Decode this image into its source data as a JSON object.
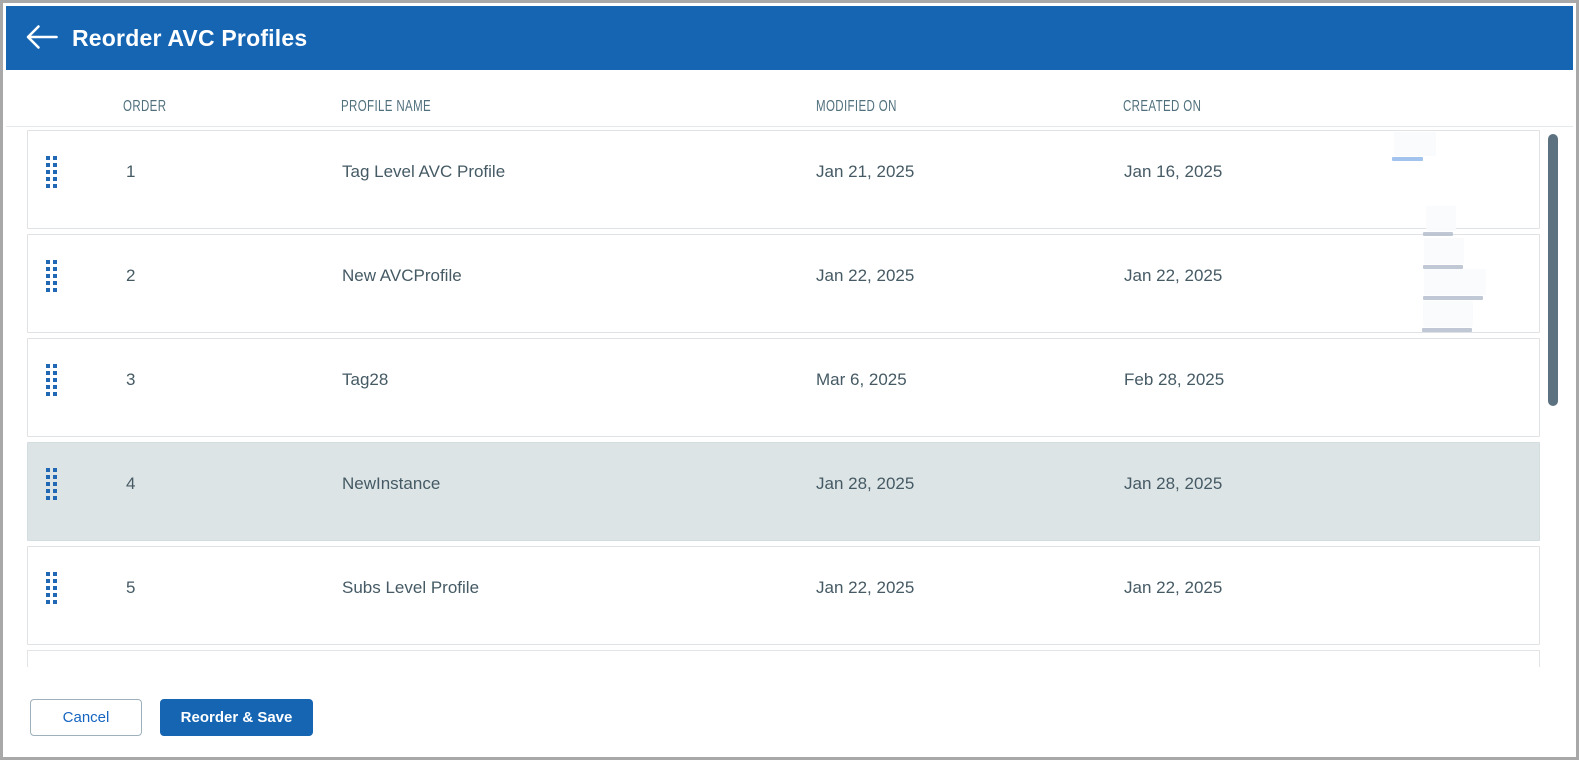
{
  "header": {
    "title": "Reorder AVC Profiles",
    "back_icon": "arrow-left-icon"
  },
  "table": {
    "columns": {
      "order": "ORDER",
      "name": "PROFILE NAME",
      "modified": "MODIFIED ON",
      "created": "CREATED ON"
    },
    "drag_handle_icon": "drag-handle-icon",
    "rows": [
      {
        "order": "1",
        "name": "Tag Level AVC Profile",
        "modified": "Jan 21, 2025",
        "created": "Jan 16, 2025",
        "highlighted": false
      },
      {
        "order": "2",
        "name": "New AVCProfile",
        "modified": "Jan 22, 2025",
        "created": "Jan 22, 2025",
        "highlighted": false
      },
      {
        "order": "3",
        "name": "Tag28",
        "modified": "Mar 6, 2025",
        "created": "Feb 28, 2025",
        "highlighted": false
      },
      {
        "order": "4",
        "name": "NewInstance",
        "modified": "Jan 28, 2025",
        "created": "Jan 28, 2025",
        "highlighted": true
      },
      {
        "order": "5",
        "name": "Subs Level Profile",
        "modified": "Jan 22, 2025",
        "created": "Jan 22, 2025",
        "highlighted": false
      }
    ]
  },
  "footer": {
    "cancel_label": "Cancel",
    "save_label": "Reorder & Save"
  },
  "colors": {
    "header_bg": "#1565b3",
    "primary_blue": "#1565b3",
    "drag_dot_blue": "#2068b4",
    "row_highlight": "#dde4e6",
    "column_label": "#51707e",
    "row_text": "#455a64",
    "scrollbar_thumb": "#5c7280",
    "cancel_text": "#1565c0"
  }
}
